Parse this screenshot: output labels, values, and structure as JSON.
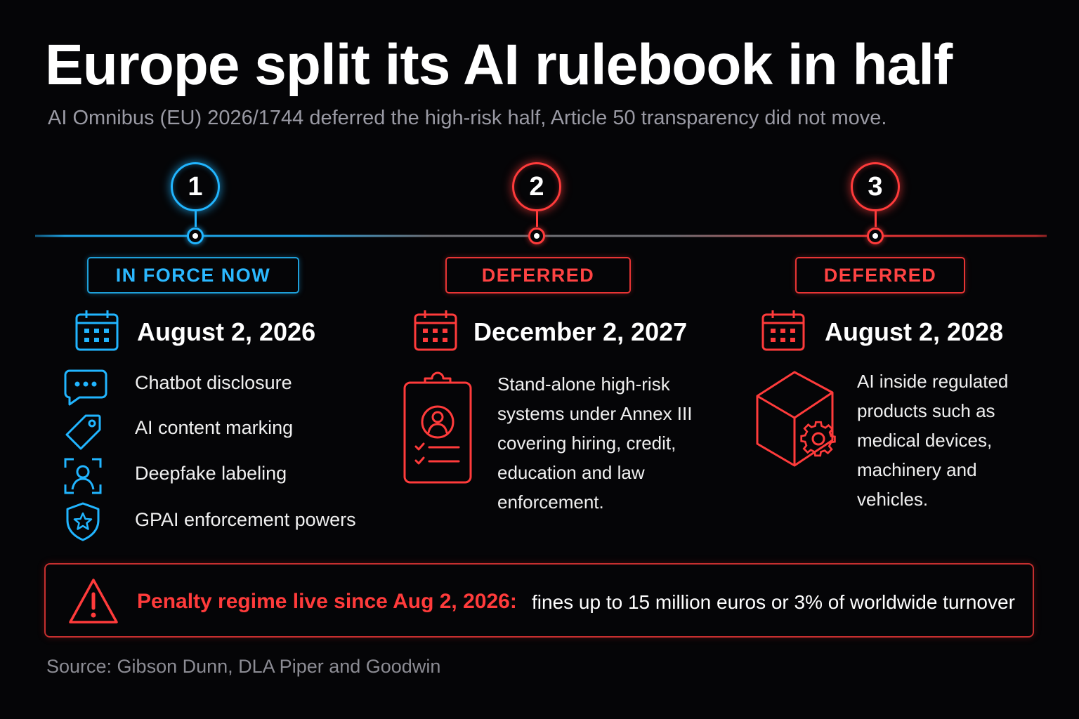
{
  "title": "Europe split its AI rulebook  in half",
  "subtitle": "AI Omnibus (EU) 2026/1744 deferred the high-risk half, Article 50 transparency did not move.",
  "colors": {
    "in_force": "#21b5ff",
    "deferred": "#ff3b3b",
    "background": "#050507"
  },
  "phases": [
    {
      "number": "1",
      "status": "IN FORCE NOW",
      "date": "August 2, 2026",
      "date_icon": "calendar-icon",
      "items": [
        {
          "icon": "chat-bubble-icon",
          "label": "Chatbot disclosure"
        },
        {
          "icon": "tag-icon",
          "label": "AI content marking"
        },
        {
          "icon": "face-scan-icon",
          "label": "Deepfake labeling"
        },
        {
          "icon": "shield-star-icon",
          "label": "GPAI enforcement powers"
        }
      ]
    },
    {
      "number": "2",
      "status": "DEFERRED",
      "date": "December 2, 2027",
      "date_icon": "calendar-icon",
      "icon": "clipboard-person-icon",
      "description_lines": [
        "Stand-alone high-risk",
        "systems under Annex III",
        "covering hiring, credit,",
        "education and law",
        "enforcement."
      ]
    },
    {
      "number": "3",
      "status": "DEFERRED",
      "date": "August 2, 2028",
      "date_icon": "calendar-icon",
      "icon": "box-gear-icon",
      "description_lines": [
        "AI inside regulated",
        "products such as",
        "medical devices,",
        "machinery and",
        "vehicles."
      ]
    }
  ],
  "penalty": {
    "icon": "warning-icon",
    "lead": "Penalty regime live since Aug 2, 2026:",
    "detail": "fines up to 15 million euros or 3% of worldwide turnover"
  },
  "source": "Source:  Gibson Dunn, DLA Piper and Goodwin"
}
